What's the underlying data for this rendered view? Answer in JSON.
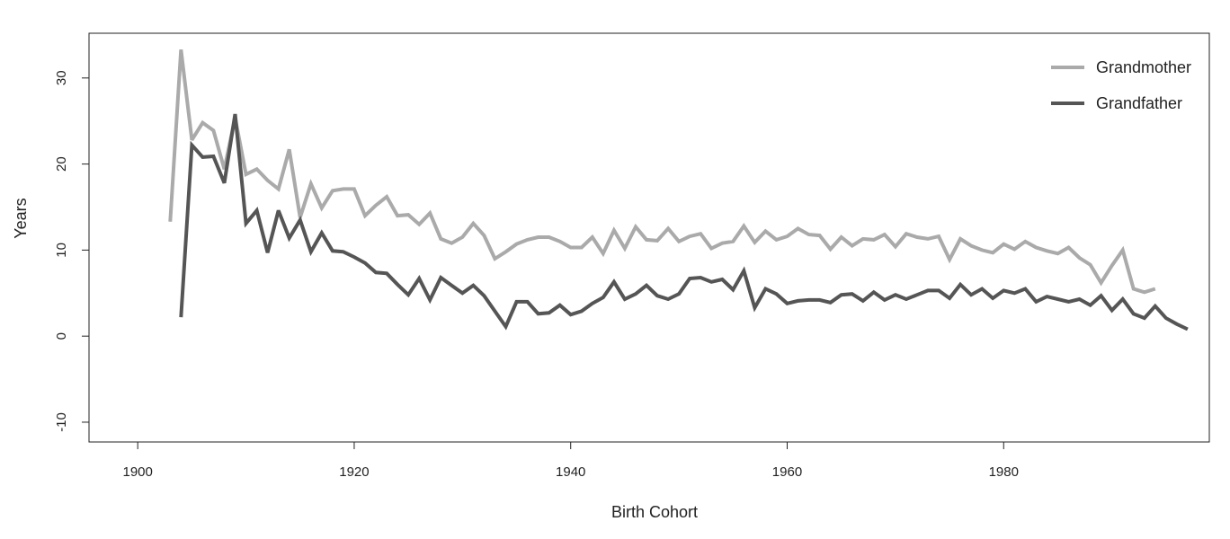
{
  "chart_data": {
    "type": "line",
    "title": "",
    "xlabel": "Birth Cohort",
    "ylabel": "Years",
    "xlim": [
      1895.5,
      1999
    ],
    "ylim": [
      -12.3,
      35.2
    ],
    "x_ticks": [
      1900,
      1920,
      1940,
      1960,
      1980
    ],
    "y_ticks": [
      -10,
      0,
      10,
      20,
      30
    ],
    "x_tick_labels": [
      "1900",
      "1920",
      "1940",
      "1960",
      "1980"
    ],
    "y_tick_labels": [
      "-10",
      "0",
      "10",
      "20",
      "30"
    ],
    "grid": false,
    "legend_position": "top-right",
    "series": [
      {
        "name": "Grandmother",
        "color": "#aaaaaa",
        "x": [
          1903,
          1904,
          1905,
          1906,
          1907,
          1908,
          1909,
          1910,
          1911,
          1912,
          1913,
          1914,
          1915,
          1916,
          1917,
          1918,
          1919,
          1920,
          1921,
          1922,
          1923,
          1924,
          1925,
          1926,
          1927,
          1928,
          1929,
          1930,
          1931,
          1932,
          1933,
          1934,
          1935,
          1936,
          1937,
          1938,
          1939,
          1940,
          1941,
          1942,
          1943,
          1944,
          1945,
          1946,
          1947,
          1948,
          1949,
          1950,
          1951,
          1952,
          1953,
          1954,
          1955,
          1956,
          1957,
          1958,
          1959,
          1960,
          1961,
          1962,
          1963,
          1964,
          1965,
          1966,
          1967,
          1968,
          1969,
          1970,
          1971,
          1972,
          1973,
          1974,
          1975,
          1976,
          1977,
          1978,
          1979,
          1980,
          1981,
          1982,
          1983,
          1984,
          1985,
          1986,
          1987,
          1988,
          1989,
          1990,
          1991,
          1992,
          1993,
          1994
        ],
        "values": [
          13.3,
          33.3,
          22.8,
          24.8,
          23.9,
          19.4,
          25.4,
          18.8,
          19.4,
          18.1,
          17.1,
          21.7,
          13.8,
          17.7,
          14.9,
          16.9,
          17.1,
          17.1,
          14.0,
          15.2,
          16.2,
          14.0,
          14.1,
          13.0,
          14.3,
          11.3,
          10.8,
          11.5,
          13.1,
          11.7,
          9.0,
          9.8,
          10.7,
          11.2,
          11.5,
          11.5,
          11.0,
          10.3,
          10.3,
          11.5,
          9.6,
          12.3,
          10.2,
          12.7,
          11.2,
          11.1,
          12.5,
          11.0,
          11.6,
          11.9,
          10.2,
          10.8,
          11.0,
          12.8,
          10.9,
          12.2,
          11.2,
          11.6,
          12.5,
          11.8,
          11.7,
          10.1,
          11.5,
          10.5,
          11.3,
          11.2,
          11.8,
          10.4,
          11.9,
          11.5,
          11.3,
          11.6,
          8.9,
          11.3,
          10.5,
          10.0,
          9.7,
          10.7,
          10.1,
          11.0,
          10.3,
          9.9,
          9.6,
          10.3,
          9.1,
          8.3,
          6.2,
          8.2,
          10.0,
          5.5,
          5.1,
          5.5
        ]
      },
      {
        "name": "Grandfather",
        "color": "#555555",
        "x": [
          1904,
          1905,
          1906,
          1907,
          1908,
          1909,
          1910,
          1911,
          1912,
          1913,
          1914,
          1915,
          1916,
          1917,
          1918,
          1919,
          1920,
          1921,
          1922,
          1923,
          1924,
          1925,
          1926,
          1927,
          1928,
          1929,
          1930,
          1931,
          1932,
          1933,
          1934,
          1935,
          1936,
          1937,
          1938,
          1939,
          1940,
          1941,
          1942,
          1943,
          1944,
          1945,
          1946,
          1947,
          1948,
          1949,
          1950,
          1951,
          1952,
          1953,
          1954,
          1955,
          1956,
          1957,
          1958,
          1959,
          1960,
          1961,
          1962,
          1963,
          1964,
          1965,
          1966,
          1967,
          1968,
          1969,
          1970,
          1971,
          1972,
          1973,
          1974,
          1975,
          1976,
          1977,
          1978,
          1979,
          1980,
          1981,
          1982,
          1983,
          1984,
          1985,
          1986,
          1987,
          1988,
          1989,
          1990,
          1991,
          1992,
          1993,
          1994,
          1995,
          1996,
          1997
        ],
        "values": [
          2.2,
          22.2,
          20.8,
          20.9,
          17.8,
          25.8,
          13.1,
          14.6,
          9.7,
          14.6,
          11.4,
          13.5,
          9.8,
          12.0,
          9.9,
          9.8,
          9.2,
          8.5,
          7.4,
          7.3,
          6.0,
          4.8,
          6.7,
          4.2,
          6.8,
          5.9,
          5.0,
          5.9,
          4.7,
          2.9,
          1.1,
          4.0,
          4.0,
          2.6,
          2.7,
          3.6,
          2.5,
          2.9,
          3.8,
          4.5,
          6.3,
          4.3,
          4.9,
          5.9,
          4.7,
          4.3,
          4.9,
          6.7,
          6.8,
          6.3,
          6.6,
          5.4,
          7.6,
          3.3,
          5.5,
          4.9,
          3.8,
          4.1,
          4.2,
          4.2,
          3.9,
          4.8,
          4.9,
          4.1,
          5.1,
          4.2,
          4.8,
          4.3,
          4.8,
          5.3,
          5.3,
          4.4,
          6.0,
          4.8,
          5.5,
          4.4,
          5.3,
          5.0,
          5.5,
          4.0,
          4.6,
          4.3,
          4.0,
          4.3,
          3.6,
          4.7,
          3.0,
          4.3,
          2.6,
          2.1,
          3.5,
          2.1,
          1.4,
          0.8
        ]
      }
    ]
  }
}
